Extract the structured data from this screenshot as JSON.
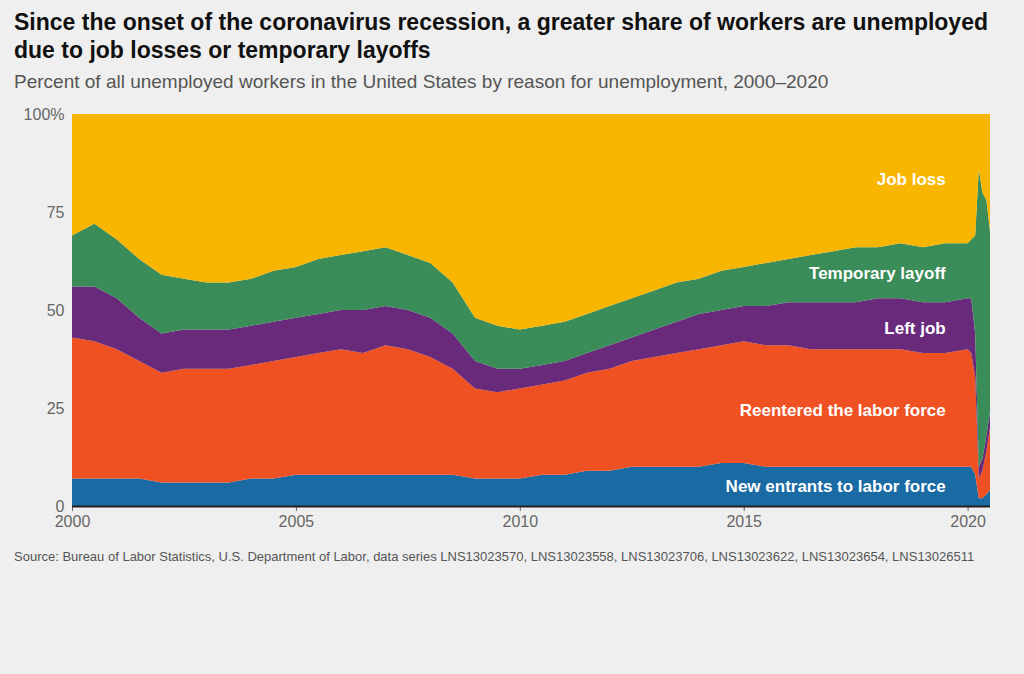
{
  "chart_data": {
    "type": "area",
    "stacked": true,
    "title": "Since the onset of the coronavirus recession, a greater share of workers are unemployed due to job losses or temporary layoffs",
    "subtitle": "Percent of all unemployed workers in the United States by reason for unemployment, 2000–2020",
    "source": "Source: Bureau of Labor Statistics, U.S. Department of Labor, data series LNS13023570, LNS13023558, LNS13023706, LNS13023622, LNS13023654, LNS13026511",
    "x": [
      2000,
      2000.5,
      2001,
      2001.5,
      2002,
      2002.5,
      2003,
      2003.5,
      2004,
      2004.5,
      2005,
      2005.5,
      2006,
      2006.5,
      2007,
      2007.5,
      2008,
      2008.5,
      2009,
      2009.5,
      2010,
      2010.5,
      2011,
      2011.5,
      2012,
      2012.5,
      2013,
      2013.5,
      2014,
      2014.5,
      2015,
      2015.5,
      2016,
      2016.5,
      2017,
      2017.5,
      2018,
      2018.5,
      2019,
      2019.5,
      2020,
      2020.08,
      2020.17,
      2020.25,
      2020.33,
      2020.42,
      2020.5
    ],
    "xlim": [
      2000,
      2020.5
    ],
    "xticks": [
      2000,
      2005,
      2010,
      2015,
      2020
    ],
    "ylim": [
      0,
      100
    ],
    "yticks": [
      0,
      25,
      50,
      75,
      {
        "value": 100,
        "label": "100%"
      }
    ],
    "series": [
      {
        "name": "New entrants to labor force",
        "color": "#1a6aa3",
        "values": [
          7,
          7,
          7,
          7,
          6,
          6,
          6,
          6,
          7,
          7,
          8,
          8,
          8,
          8,
          8,
          8,
          8,
          8,
          7,
          7,
          7,
          8,
          8,
          9,
          9,
          10,
          10,
          10,
          10,
          11,
          11,
          10,
          10,
          10,
          10,
          10,
          10,
          10,
          10,
          10,
          10,
          10,
          8,
          2,
          2,
          3,
          4
        ]
      },
      {
        "name": "Reentered the labor force",
        "color": "#f05123",
        "values": [
          36,
          35,
          33,
          30,
          28,
          29,
          29,
          29,
          29,
          30,
          30,
          31,
          32,
          31,
          33,
          32,
          30,
          27,
          23,
          22,
          23,
          23,
          24,
          25,
          26,
          27,
          28,
          29,
          30,
          30,
          31,
          31,
          31,
          30,
          30,
          30,
          30,
          30,
          29,
          29,
          30,
          29,
          25,
          5,
          7,
          11,
          16
        ]
      },
      {
        "name": "Left job",
        "color": "#6a2a7c",
        "values": [
          13,
          14,
          13,
          11,
          10,
          10,
          10,
          10,
          10,
          10,
          10,
          10,
          10,
          11,
          10,
          10,
          10,
          9,
          7,
          6,
          5,
          5,
          5,
          5,
          6,
          6,
          7,
          8,
          9,
          9,
          9,
          10,
          11,
          12,
          12,
          12,
          13,
          13,
          13,
          13,
          13,
          14,
          11,
          3,
          3,
          4,
          4
        ]
      },
      {
        "name": "Temporary layoff",
        "color": "#3a8c59",
        "values": [
          13,
          16,
          15,
          15,
          15,
          13,
          12,
          12,
          12,
          13,
          13,
          14,
          14,
          15,
          15,
          14,
          14,
          13,
          11,
          11,
          10,
          10,
          10,
          10,
          10,
          10,
          10,
          10,
          9,
          10,
          10,
          11,
          11,
          12,
          13,
          14,
          13,
          14,
          14,
          15,
          14,
          15,
          25,
          76,
          68,
          60,
          46
        ]
      },
      {
        "name": "Job loss",
        "color": "#f8b600",
        "values": [
          31,
          28,
          32,
          37,
          41,
          42,
          43,
          43,
          42,
          40,
          39,
          37,
          36,
          35,
          34,
          36,
          38,
          43,
          52,
          54,
          55,
          54,
          53,
          51,
          49,
          47,
          45,
          43,
          42,
          40,
          39,
          38,
          37,
          36,
          35,
          34,
          34,
          33,
          34,
          33,
          33,
          32,
          31,
          14,
          20,
          22,
          30
        ]
      }
    ]
  }
}
